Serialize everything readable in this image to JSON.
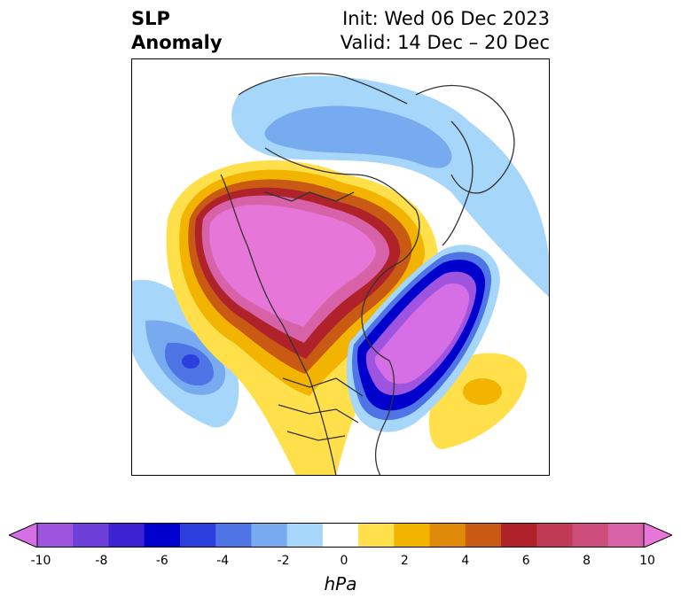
{
  "title": {
    "left_line1": "SLP",
    "left_line2": "Anomaly",
    "right_line1": "Init: Wed 06 Dec 2023",
    "right_line2": "Valid: 14 Dec – 20 Dec"
  },
  "colorbar": {
    "label": "hPa",
    "ticks": [
      "-10",
      "-8",
      "-6",
      "-4",
      "-2",
      "0",
      "2",
      "4",
      "6",
      "8",
      "10"
    ],
    "colors": [
      "#d66fe6",
      "#9f54e0",
      "#6d3fd9",
      "#3d22d4",
      "#0000cc",
      "#2a3fdc",
      "#4e74e6",
      "#78aaf0",
      "#a7d6fb",
      "#ffffff",
      "#ffe04a",
      "#f2b400",
      "#e08a0a",
      "#c85a14",
      "#b0222a",
      "#c03a55",
      "#cc4c7a",
      "#d862a8",
      "#e676d8"
    ]
  }
}
